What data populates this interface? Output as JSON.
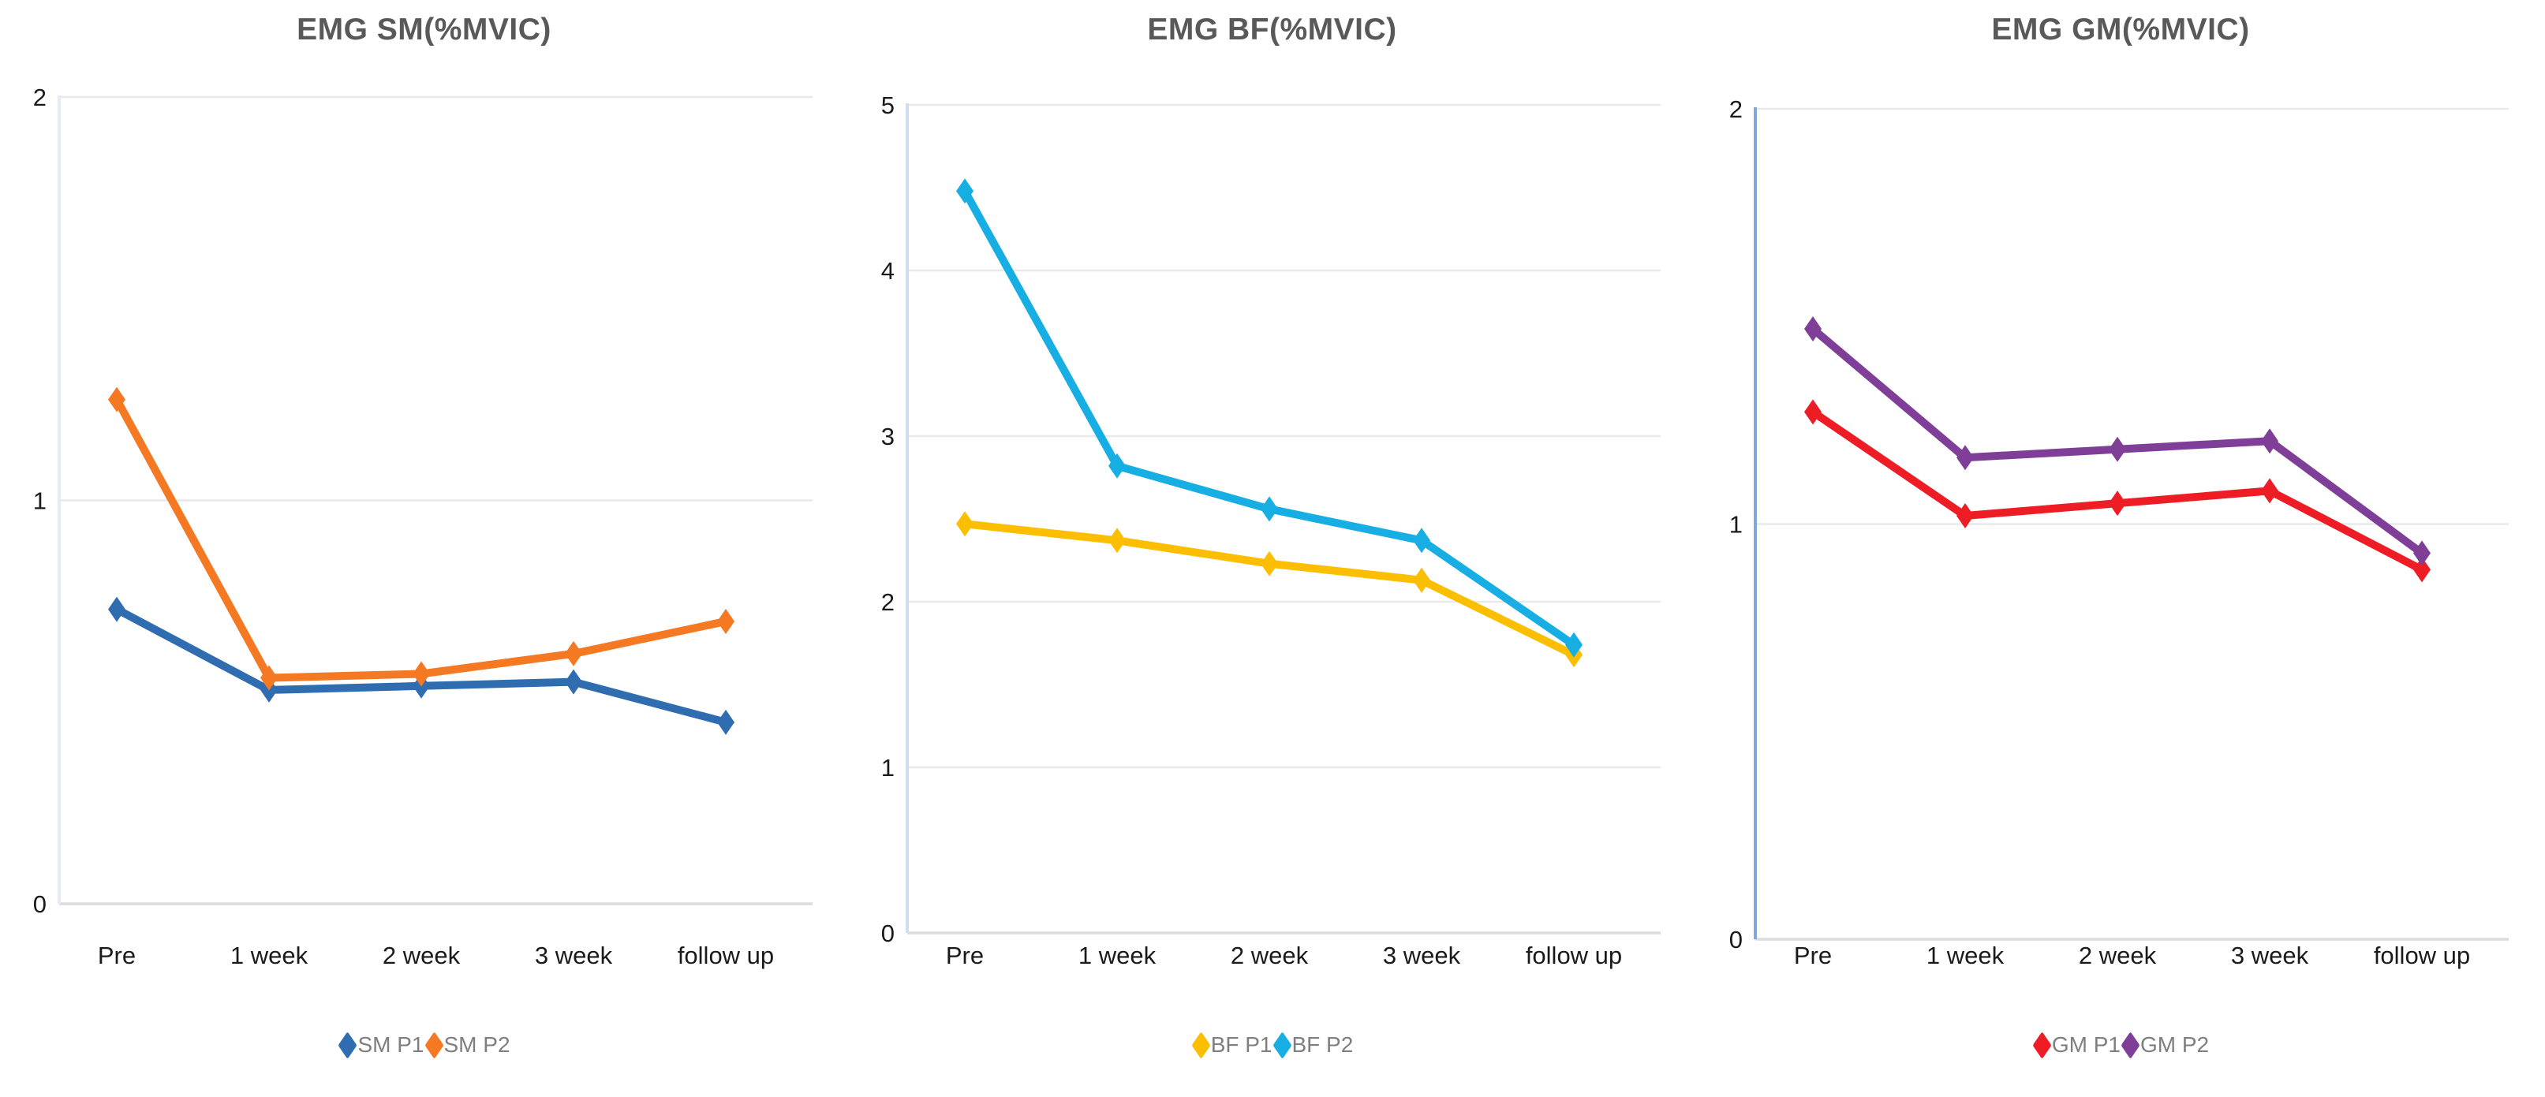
{
  "page": {
    "background": "#ffffff",
    "title_color": "#595959",
    "gridline_color": "#E9E9E9",
    "baseline_color": "#DCDCDC",
    "tick_label_color": "#1a1a1a",
    "legend_text_color": "#7f7f7f"
  },
  "chart_data": [
    {
      "type": "line",
      "title": "EMG SM(%MVIC)",
      "xlabel": "",
      "ylabel": "",
      "categories": [
        "Pre",
        "1 week",
        "2 week",
        "3 week",
        "follow up"
      ],
      "series": [
        {
          "name": "SM P1",
          "color": "#2F6DB0",
          "values": [
            0.73,
            0.53,
            0.54,
            0.55,
            0.45
          ]
        },
        {
          "name": "SM P2",
          "color": "#F57823",
          "values": [
            1.25,
            0.56,
            0.57,
            0.62,
            0.7
          ]
        }
      ],
      "ylim": [
        0,
        2
      ],
      "yticks": [
        0,
        1,
        2
      ],
      "grid": true,
      "marker": "diamond",
      "legend_position": "bottom",
      "axis_color": "#E7EAF5"
    },
    {
      "type": "line",
      "title": "EMG BF(%MVIC)",
      "xlabel": "",
      "ylabel": "",
      "categories": [
        "Pre",
        "1 week",
        "2 week",
        "3 week",
        "follow up"
      ],
      "series": [
        {
          "name": "BF P1",
          "color": "#FBBE00",
          "values": [
            2.47,
            2.37,
            2.23,
            2.13,
            1.68
          ]
        },
        {
          "name": "BF P2",
          "color": "#17AEE3",
          "values": [
            4.48,
            2.82,
            2.56,
            2.37,
            1.74
          ]
        }
      ],
      "ylim": [
        0,
        5
      ],
      "yticks": [
        0,
        1,
        2,
        3,
        4,
        5
      ],
      "grid": true,
      "marker": "diamond",
      "legend_position": "bottom",
      "axis_color": "#CFDDF0"
    },
    {
      "type": "line",
      "title": "EMG GM(%MVIC)",
      "xlabel": "",
      "ylabel": "",
      "categories": [
        "Pre",
        "1 week",
        "2 week",
        "3 week",
        "follow up"
      ],
      "series": [
        {
          "name": "GM P1",
          "color": "#EE1C24",
          "values": [
            1.27,
            1.02,
            1.05,
            1.08,
            0.89
          ]
        },
        {
          "name": "GM P2",
          "color": "#7F3F98",
          "values": [
            1.47,
            1.16,
            1.18,
            1.2,
            0.93
          ]
        }
      ],
      "ylim": [
        0,
        2
      ],
      "yticks": [
        0,
        1,
        2
      ],
      "grid": true,
      "marker": "diamond",
      "legend_position": "bottom",
      "axis_color": "#7FA8DC"
    }
  ]
}
